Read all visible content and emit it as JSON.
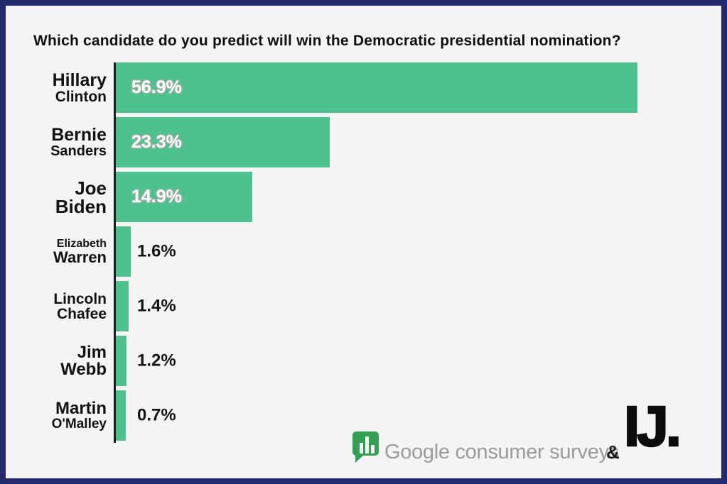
{
  "chart_data": {
    "type": "bar",
    "orientation": "horizontal",
    "title": "Which candidate do you predict will win the Democratic presidential nomination?",
    "categories": [
      "Hillary Clinton",
      "Bernie Sanders",
      "Joe Biden",
      "Elizabeth Warren",
      "Lincoln Chafee",
      "Jim Webb",
      "Martin O'Malley"
    ],
    "categories_lines": [
      [
        "Hillary",
        "Clinton"
      ],
      [
        "Bernie",
        "Sanders"
      ],
      [
        "Joe",
        "Biden"
      ],
      [
        "Elizabeth",
        "Warren"
      ],
      [
        "Lincoln",
        "Chafee"
      ],
      [
        "Jim",
        "Webb"
      ],
      [
        "Martin",
        "O'Malley"
      ]
    ],
    "values": [
      56.9,
      23.3,
      14.9,
      1.6,
      1.4,
      1.2,
      0.7
    ],
    "value_labels": [
      "56.9%",
      "23.3%",
      "14.9%",
      "1.6%",
      "1.4%",
      "1.2%",
      "0.7%"
    ],
    "xlim": [
      0,
      62
    ],
    "grid": false,
    "legend": false,
    "bar_color": "#4ec28e",
    "inside_label_threshold_pct": 5
  },
  "branding": {
    "google_label": "Google consumer surveys",
    "ampersand": "&",
    "ij_label": "IJ."
  },
  "colors": {
    "frame_border": "#232b6d",
    "background": "#f3f4f3",
    "bar": "#4ec28e",
    "axis": "#1b1b1b",
    "google_icon_green": "#35a054",
    "google_text_gray": "#9b9b9b"
  }
}
